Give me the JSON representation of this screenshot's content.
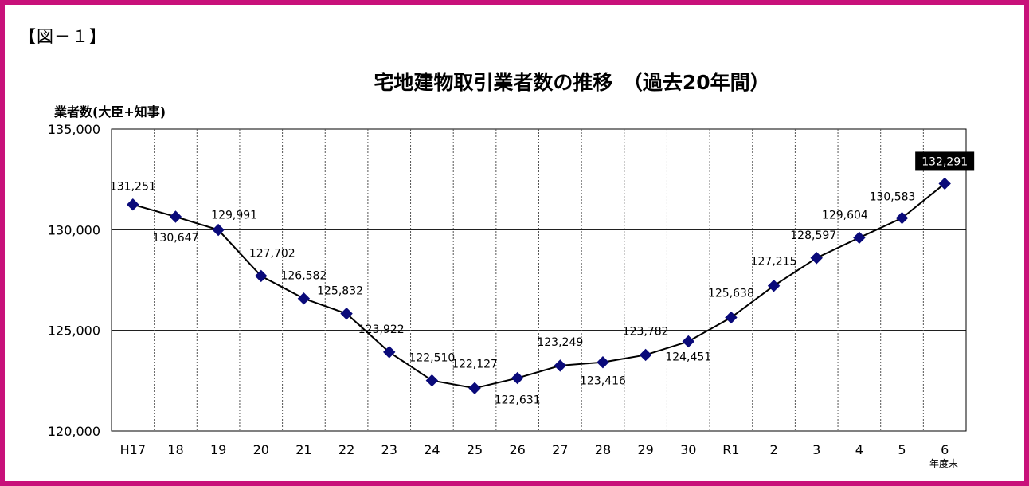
{
  "figure_label": "【図－１】",
  "chart_data": {
    "type": "line",
    "title": "宅地建物取引業者数の推移　（過去20年間）",
    "ylabel": "業者数(大臣+知事)",
    "xlabel_suffix": "年度末",
    "ylim": [
      120000,
      135000
    ],
    "yticks": [
      120000,
      125000,
      130000,
      135000
    ],
    "ytick_labels": [
      "120,000",
      "125,000",
      "130,000",
      "135,000"
    ],
    "grid": true,
    "colors": {
      "line": "#000000",
      "marker": "#0a0a7a",
      "highlight_bg": "#000000",
      "highlight_text": "#ffffff"
    },
    "categories": [
      "H17",
      "18",
      "19",
      "20",
      "21",
      "22",
      "23",
      "24",
      "25",
      "26",
      "27",
      "28",
      "29",
      "30",
      "R1",
      "2",
      "3",
      "4",
      "5",
      "6"
    ],
    "values": [
      131251,
      130647,
      129991,
      127702,
      126582,
      125832,
      123922,
      122510,
      122127,
      122631,
      123249,
      123416,
      123782,
      124451,
      125638,
      127215,
      128597,
      129604,
      130583,
      132291
    ],
    "data_labels": [
      "131,251",
      "130,647",
      "129,991",
      "127,702",
      "126,582",
      "125,832",
      "123,922",
      "122,510",
      "122,127",
      "122,631",
      "123,249",
      "123,416",
      "123,782",
      "124,451",
      "125,638",
      "127,215",
      "128,597",
      "129,604",
      "130,583",
      "132,291"
    ],
    "highlighted_index": 19
  }
}
